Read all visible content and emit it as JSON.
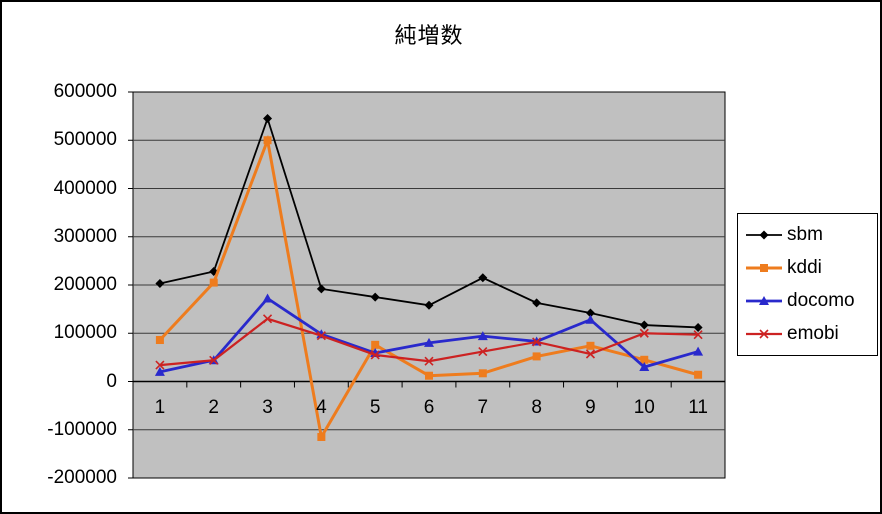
{
  "chart_data": {
    "type": "line",
    "title": "純増数",
    "xlabel": "",
    "ylabel": "",
    "categories": [
      "1",
      "2",
      "3",
      "4",
      "5",
      "6",
      "7",
      "8",
      "9",
      "10",
      "11"
    ],
    "series": [
      {
        "name": "sbm",
        "color": "#000000",
        "marker": "diamond",
        "line_width": 1.8,
        "values": [
          203000,
          228000,
          545000,
          192000,
          175000,
          158000,
          215000,
          163000,
          142000,
          117000,
          112000
        ]
      },
      {
        "name": "kddi",
        "color": "#EE7C1E",
        "marker": "square",
        "line_width": 3,
        "values": [
          86000,
          205000,
          500000,
          -115000,
          76000,
          12000,
          17000,
          52000,
          74000,
          45000,
          14000
        ]
      },
      {
        "name": "docomo",
        "color": "#2929CC",
        "marker": "triangle",
        "line_width": 2.8,
        "values": [
          20000,
          44000,
          172000,
          98000,
          59000,
          80000,
          94000,
          83000,
          128000,
          30000,
          62000
        ]
      },
      {
        "name": "emobi",
        "color": "#CC2222",
        "marker": "x",
        "line_width": 2.2,
        "values": [
          34000,
          44000,
          130000,
          95000,
          55000,
          42000,
          62000,
          82000,
          57000,
          100000,
          97000
        ]
      }
    ],
    "ylim": [
      -200000,
      600000
    ],
    "y_tick_step": 100000,
    "y_ticks": [
      "600000",
      "500000",
      "400000",
      "300000",
      "200000",
      "100000",
      "0",
      "-100000",
      "-200000"
    ],
    "grid": true,
    "legend_position": "right",
    "plot_bg_color": "#C0C0C0",
    "gridline_color": "#3a3a3a",
    "axis_color": "#000000"
  }
}
